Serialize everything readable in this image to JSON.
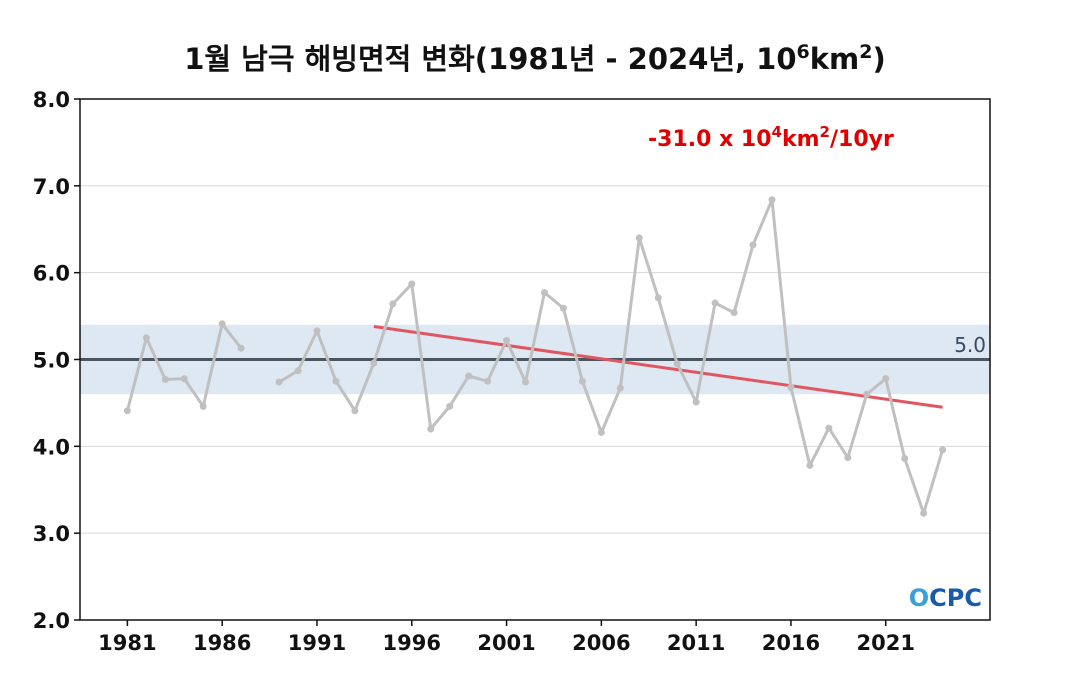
{
  "chart_data": {
    "type": "line",
    "title": {
      "prefix": "1월 남극 해빙면적 변화(1981년 - 2024년, 10",
      "sup1": "6",
      "mid": "km",
      "sup2": "2",
      "suffix": ")"
    },
    "xlabel": "",
    "ylabel": "",
    "xlim": [
      1978.5,
      2026.5
    ],
    "ylim": [
      2.0,
      8.0
    ],
    "x_ticks": [
      "1981",
      "1986",
      "1991",
      "1996",
      "2001",
      "2006",
      "2011",
      "2016",
      "2021"
    ],
    "y_ticks": [
      "2.0",
      "3.0",
      "4.0",
      "5.0",
      "6.0",
      "7.0",
      "8.0"
    ],
    "grid": "horizontal",
    "series": [
      {
        "color": "#c0c0c0",
        "x": [
          1981,
          1982,
          1983,
          1984,
          1985,
          1986,
          1987,
          1988,
          1989,
          1990,
          1991,
          1992,
          1993,
          1994,
          1995,
          1996,
          1997,
          1998,
          1999,
          2000,
          2001,
          2002,
          2003,
          2004,
          2005,
          2006,
          2007,
          2008,
          2009,
          2010,
          2011,
          2012,
          2013,
          2014,
          2015,
          2016,
          2017,
          2018,
          2019,
          2020,
          2021,
          2022,
          2023,
          2024
        ],
        "y": [
          4.41,
          5.25,
          4.77,
          4.78,
          4.46,
          5.41,
          5.13,
          null,
          4.74,
          4.87,
          5.33,
          4.75,
          4.41,
          4.96,
          5.64,
          5.87,
          4.2,
          4.46,
          4.81,
          4.75,
          5.22,
          4.74,
          5.77,
          5.59,
          4.75,
          4.16,
          4.67,
          6.4,
          5.71,
          4.95,
          4.51,
          5.65,
          5.54,
          6.32,
          6.84,
          4.68,
          3.78,
          4.21,
          3.87,
          4.6,
          4.78,
          3.86,
          3.23,
          3.96
        ]
      }
    ],
    "trend": {
      "color": "#e05560",
      "x": [
        1994,
        2024
      ],
      "y": [
        5.38,
        4.45
      ],
      "label_main": "-31.0 x 10",
      "label_sup1": "4",
      "label_mid": "km",
      "label_sup2": "2",
      "label_end": "/10yr",
      "label_color": "#e00000"
    },
    "reference": {
      "value": 5.0,
      "label": "5.0",
      "color": "#4a5560",
      "band": [
        4.6,
        5.4
      ],
      "band_color": "#dde8f2"
    }
  },
  "logo": {
    "text": "OCPC",
    "colors": [
      "#1a5aa8",
      "#3aa0d8"
    ]
  }
}
